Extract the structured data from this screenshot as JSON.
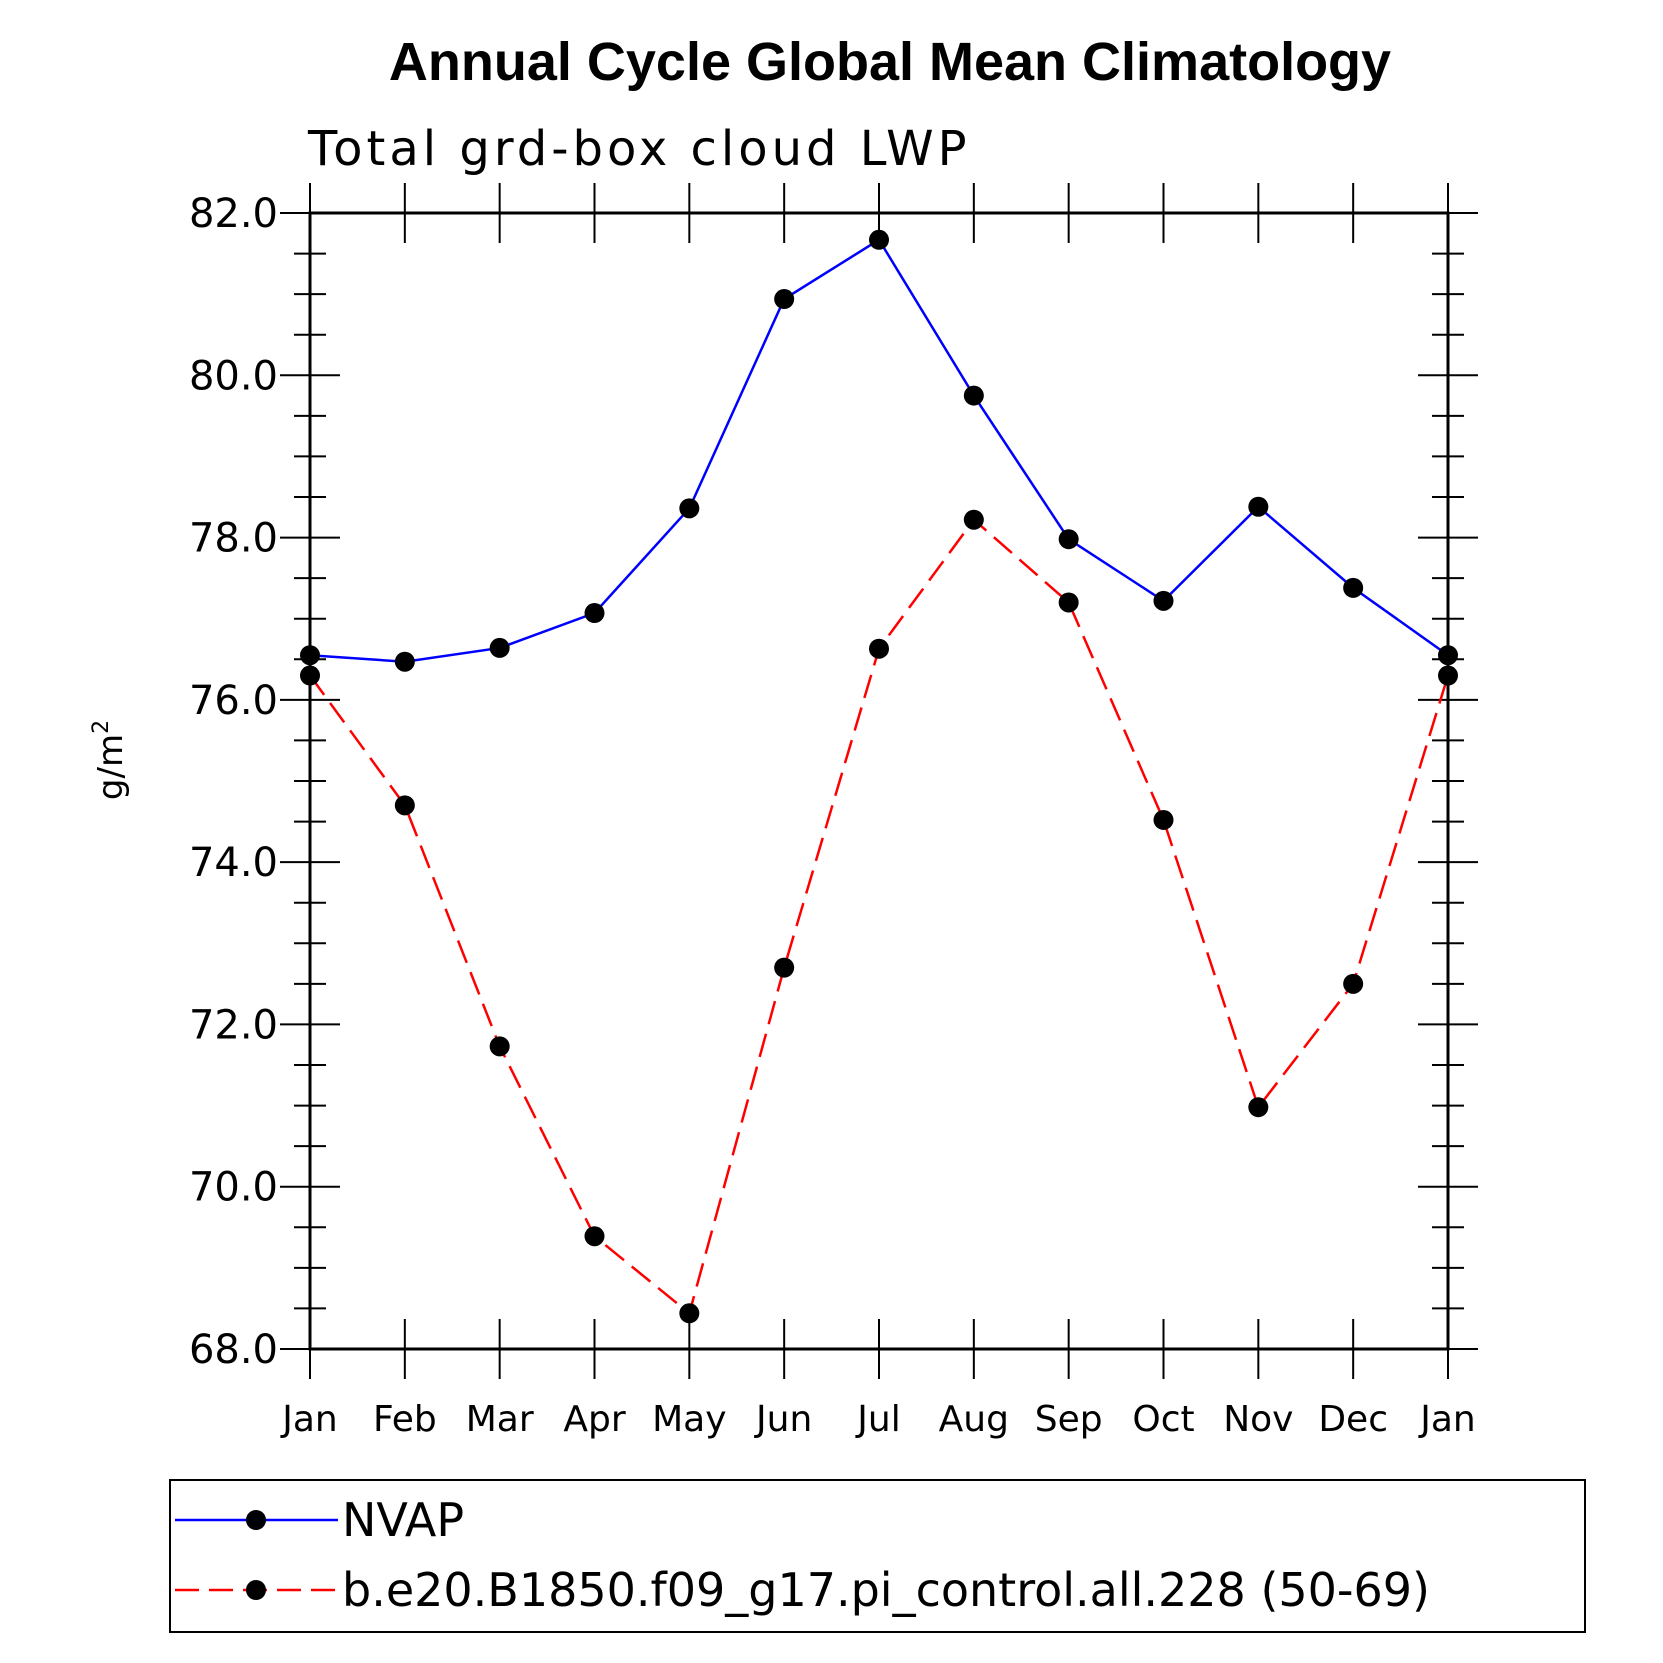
{
  "chart_data": {
    "type": "line",
    "title": "Annual Cycle Global Mean Climatology",
    "subtitle": "Total grd-box cloud LWP",
    "ylabel": "g/m",
    "ylabel_sup": "2",
    "xlabel": "",
    "ylim": [
      68,
      82
    ],
    "yticks": [
      "68.0",
      "70.0",
      "72.0",
      "74.0",
      "76.0",
      "78.0",
      "80.0",
      "82.0"
    ],
    "categories": [
      "Jan",
      "Feb",
      "Mar",
      "Apr",
      "May",
      "Jun",
      "Jul",
      "Aug",
      "Sep",
      "Oct",
      "Nov",
      "Dec",
      "Jan"
    ],
    "grid": false,
    "legend_position": "bottom",
    "series": [
      {
        "name": "NVAP",
        "color": "#0000ff",
        "style": "solid",
        "marker": "filled-circle",
        "values": [
          76.55,
          76.47,
          76.64,
          77.07,
          78.36,
          80.94,
          81.67,
          79.75,
          77.98,
          77.22,
          78.38,
          77.38,
          76.55
        ]
      },
      {
        "name": "b.e20.B1850.f09_g17.pi_control.all.228 (50-69)",
        "color": "#ff0000",
        "style": "dashed",
        "marker": "filled-circle",
        "values": [
          76.3,
          74.7,
          71.73,
          69.39,
          68.44,
          72.7,
          76.63,
          78.22,
          77.2,
          74.52,
          70.98,
          72.5,
          76.3
        ]
      }
    ]
  }
}
